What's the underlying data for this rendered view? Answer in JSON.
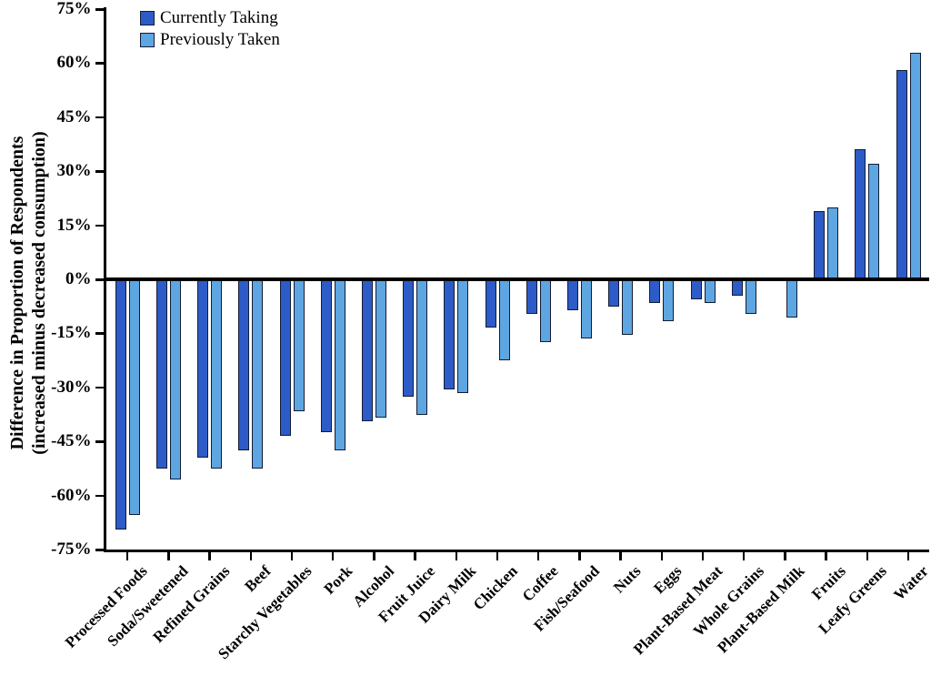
{
  "chart_data": {
    "type": "bar",
    "title": "",
    "ylabel_line1": "Difference in Proportion of Respondents",
    "ylabel_line2": "(increased minus decreased consumption)",
    "xlabel": "",
    "ylim": [
      -75,
      75
    ],
    "grid": false,
    "legend_position": "top-left",
    "y_ticks": [
      {
        "label": "75%",
        "value": 75
      },
      {
        "label": "60%",
        "value": 60
      },
      {
        "label": "45%",
        "value": 45
      },
      {
        "label": "30%",
        "value": 30
      },
      {
        "label": "15%",
        "value": 15
      },
      {
        "label": "0%",
        "value": 0
      },
      {
        "label": "-15%",
        "value": -15
      },
      {
        "label": "-30%",
        "value": -30
      },
      {
        "label": "-45%",
        "value": -45
      },
      {
        "label": "-60%",
        "value": -60
      },
      {
        "label": "-75%",
        "value": -75
      }
    ],
    "categories": [
      "Processed Foods",
      "Soda/Sweetened",
      "Refined Grains",
      "Beef",
      "Starchy Vegetables",
      "Pork",
      "Alcohol",
      "Fruit Juice",
      "Dairy Milk",
      "Chicken",
      "Coffee",
      "Fish/Seafood",
      "Nuts",
      "Eggs",
      "Plant-Based Meat",
      "Whole Grains",
      "Plant-Based Milk",
      "Fruits",
      "Leafy Greens",
      "Water"
    ],
    "series": [
      {
        "name": "Currently Taking",
        "color": "#2d5bc7",
        "values": [
          -69,
          -52,
          -49,
          -47,
          -43,
          -42,
          -39,
          -32,
          -30,
          -13,
          -9,
          -8,
          -7,
          -6,
          -5,
          -4,
          0,
          19,
          36,
          58
        ]
      },
      {
        "name": "Previously Taken",
        "color": "#5ea6e2",
        "values": [
          -65,
          -55,
          -52,
          -52,
          -36,
          -47,
          -38,
          -37,
          -31,
          -22,
          -17,
          -16,
          -15,
          -11,
          -6,
          -9,
          -10,
          20,
          32,
          63
        ]
      }
    ],
    "colors": {
      "bar_outline": "#131c33",
      "axis": "#000000",
      "background": "#ffffff"
    }
  }
}
